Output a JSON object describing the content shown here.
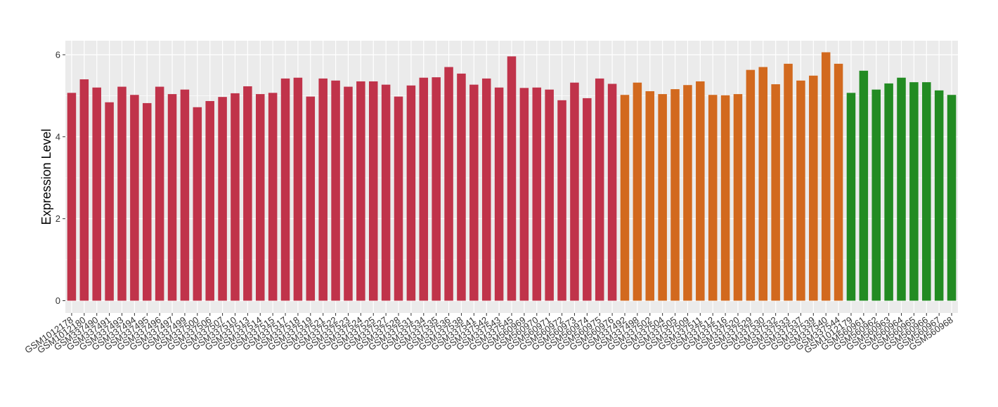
{
  "chart_data": {
    "type": "bar",
    "title": "",
    "xlabel": "",
    "ylabel": "Expression Level",
    "ylim": [
      0,
      6.3
    ],
    "yticks": [
      0,
      2,
      4,
      6
    ],
    "grid": true,
    "legend": "none",
    "colors": {
      "group1": "#C0334A",
      "group2": "#D2691E",
      "group3": "#228B22",
      "panel": "#EBEBEB",
      "gridline": "#FFFFFF"
    },
    "categories": [
      "GSM1012178",
      "GSM1012180",
      "GSM337490",
      "GSM337491",
      "GSM337493",
      "GSM337494",
      "GSM337495",
      "GSM337496",
      "GSM337497",
      "GSM337499",
      "GSM337500",
      "GSM337506",
      "GSM337507",
      "GSM337510",
      "GSM337513",
      "GSM337514",
      "GSM337515",
      "GSM337517",
      "GSM337518",
      "GSM337519",
      "GSM337521",
      "GSM337522",
      "GSM337523",
      "GSM337524",
      "GSM337525",
      "GSM337527",
      "GSM337528",
      "GSM337531",
      "GSM337534",
      "GSM337535",
      "GSM337536",
      "GSM337538",
      "GSM337541",
      "GSM337542",
      "GSM337543",
      "GSM337545",
      "GSM560969",
      "GSM560970",
      "GSM560971",
      "GSM560972",
      "GSM560973",
      "GSM560974",
      "GSM560975",
      "GSM560976",
      "GSM337492",
      "GSM337498",
      "GSM337502",
      "GSM337504",
      "GSM337505",
      "GSM337509",
      "GSM337511",
      "GSM337512",
      "GSM337516",
      "GSM337520",
      "GSM337529",
      "GSM337530",
      "GSM337532",
      "GSM337533",
      "GSM337537",
      "GSM337539",
      "GSM337540",
      "GSM337544",
      "GSM1012179",
      "GSM560961",
      "GSM560962",
      "GSM560963",
      "GSM560964",
      "GSM560965",
      "GSM560966",
      "GSM560967",
      "GSM560968"
    ],
    "values": [
      5.07,
      5.4,
      5.2,
      4.84,
      5.22,
      5.02,
      4.82,
      5.22,
      5.04,
      5.15,
      4.72,
      4.87,
      4.97,
      5.06,
      5.23,
      5.04,
      5.07,
      5.42,
      5.44,
      4.98,
      5.42,
      5.37,
      5.22,
      5.35,
      5.35,
      5.27,
      4.98,
      5.25,
      5.44,
      5.45,
      5.7,
      5.54,
      5.27,
      5.42,
      5.2,
      5.96,
      5.19,
      5.2,
      5.15,
      4.89,
      5.32,
      4.94,
      5.42,
      5.29,
      5.02,
      5.32,
      5.11,
      5.04,
      5.16,
      5.26,
      5.35,
      5.02,
      5.01,
      5.04,
      5.63,
      5.7,
      5.28,
      5.78,
      5.37,
      5.49,
      6.06,
      5.78,
      5.07,
      5.61,
      5.15,
      5.3,
      5.44,
      5.33,
      5.33,
      5.13,
      5.02
    ],
    "groups": [
      1,
      1,
      1,
      1,
      1,
      1,
      1,
      1,
      1,
      1,
      1,
      1,
      1,
      1,
      1,
      1,
      1,
      1,
      1,
      1,
      1,
      1,
      1,
      1,
      1,
      1,
      1,
      1,
      1,
      1,
      1,
      1,
      1,
      1,
      1,
      1,
      1,
      1,
      1,
      1,
      1,
      1,
      1,
      1,
      2,
      2,
      2,
      2,
      2,
      2,
      2,
      2,
      2,
      2,
      2,
      2,
      2,
      2,
      2,
      2,
      2,
      2,
      3,
      3,
      3,
      3,
      3,
      3,
      3,
      3,
      3
    ]
  }
}
